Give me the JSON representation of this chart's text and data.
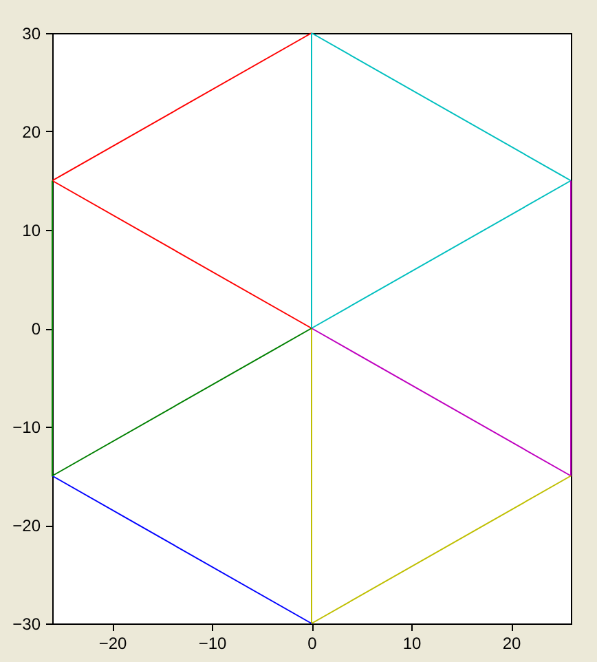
{
  "chart_data": {
    "type": "line",
    "xlim": [
      -26,
      26
    ],
    "ylim": [
      -30,
      30
    ],
    "xticks": [
      -20,
      -10,
      0,
      10,
      20
    ],
    "yticks": [
      -30,
      -20,
      -10,
      0,
      10,
      20,
      30
    ],
    "grid": false,
    "marker": "none",
    "line_style": "solid",
    "series": [
      {
        "color": "#ff0000",
        "x": [
          -26,
          0
        ],
        "values": [
          15,
          30
        ]
      },
      {
        "color": "#ff0000",
        "x": [
          -26,
          0
        ],
        "values": [
          15,
          0
        ]
      },
      {
        "color": "#00bfbf",
        "x": [
          0,
          0,
          26
        ],
        "values": [
          30,
          0,
          15
        ]
      },
      {
        "color": "#00bfbf",
        "x": [
          0,
          26
        ],
        "values": [
          30,
          15
        ]
      },
      {
        "color": "#bf00bf",
        "x": [
          0,
          26,
          26
        ],
        "values": [
          0,
          -15,
          15
        ]
      },
      {
        "color": "#bfbf00",
        "x": [
          0,
          0,
          26
        ],
        "values": [
          0,
          -30,
          -15
        ]
      },
      {
        "color": "#0000ff",
        "x": [
          -26,
          0
        ],
        "values": [
          -15,
          -30
        ]
      },
      {
        "color": "#008000",
        "x": [
          -26,
          -26,
          0
        ],
        "values": [
          15,
          -15,
          0
        ]
      }
    ]
  }
}
